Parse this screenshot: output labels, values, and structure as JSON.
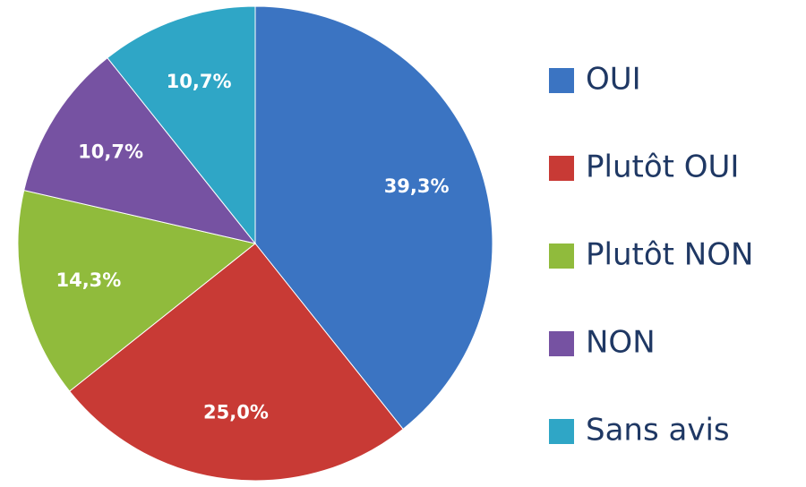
{
  "chart_data": {
    "type": "pie",
    "categories": [
      "OUI",
      "Plutôt OUI",
      "Plutôt NON",
      "NON",
      "Sans avis"
    ],
    "values": [
      39.3,
      25.0,
      14.3,
      10.7,
      10.7
    ],
    "value_labels": [
      "39,3%",
      "25,0%",
      "14,3%",
      "10,7%",
      "10,7%"
    ],
    "colors": [
      "#3b74c2",
      "#c83a35",
      "#90bb3c",
      "#7652a2",
      "#2fa6c6"
    ],
    "legend": "right"
  }
}
